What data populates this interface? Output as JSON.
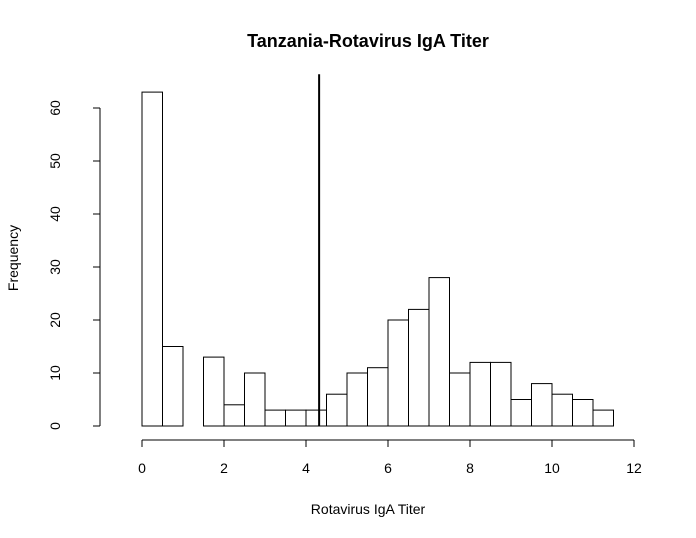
{
  "chart_data": {
    "type": "bar",
    "title": "Tanzania-Rotavirus IgA Titer",
    "xlabel": "Rotavirus IgA Titer",
    "ylabel": "Frequency",
    "xlim": [
      0,
      12
    ],
    "ylim": [
      0,
      60
    ],
    "x_ticks": [
      0,
      2,
      4,
      6,
      8,
      10,
      12
    ],
    "y_ticks": [
      0,
      10,
      20,
      30,
      40,
      50,
      60
    ],
    "bin_width": 0.5,
    "bins": [
      {
        "start": 0.0,
        "end": 0.5,
        "count": 63
      },
      {
        "start": 0.5,
        "end": 1.0,
        "count": 15
      },
      {
        "start": 1.0,
        "end": 1.5,
        "count": 0
      },
      {
        "start": 1.5,
        "end": 2.0,
        "count": 13
      },
      {
        "start": 2.0,
        "end": 2.5,
        "count": 4
      },
      {
        "start": 2.5,
        "end": 3.0,
        "count": 10
      },
      {
        "start": 3.0,
        "end": 3.5,
        "count": 3
      },
      {
        "start": 3.5,
        "end": 4.0,
        "count": 3
      },
      {
        "start": 4.0,
        "end": 4.5,
        "count": 3
      },
      {
        "start": 4.5,
        "end": 5.0,
        "count": 6
      },
      {
        "start": 5.0,
        "end": 5.5,
        "count": 10
      },
      {
        "start": 5.5,
        "end": 6.0,
        "count": 11
      },
      {
        "start": 6.0,
        "end": 6.5,
        "count": 20
      },
      {
        "start": 6.5,
        "end": 7.0,
        "count": 22
      },
      {
        "start": 7.0,
        "end": 7.5,
        "count": 28
      },
      {
        "start": 7.5,
        "end": 8.0,
        "count": 10
      },
      {
        "start": 8.0,
        "end": 8.5,
        "count": 12
      },
      {
        "start": 8.5,
        "end": 9.0,
        "count": 12
      },
      {
        "start": 9.0,
        "end": 9.5,
        "count": 5
      },
      {
        "start": 9.5,
        "end": 10.0,
        "count": 8
      },
      {
        "start": 10.0,
        "end": 10.5,
        "count": 6
      },
      {
        "start": 10.5,
        "end": 11.0,
        "count": 5
      },
      {
        "start": 11.0,
        "end": 11.5,
        "count": 3
      }
    ],
    "cutoff_line_x": 4.32,
    "cutoff_line_top": 66,
    "grid": false,
    "legend": "none"
  }
}
